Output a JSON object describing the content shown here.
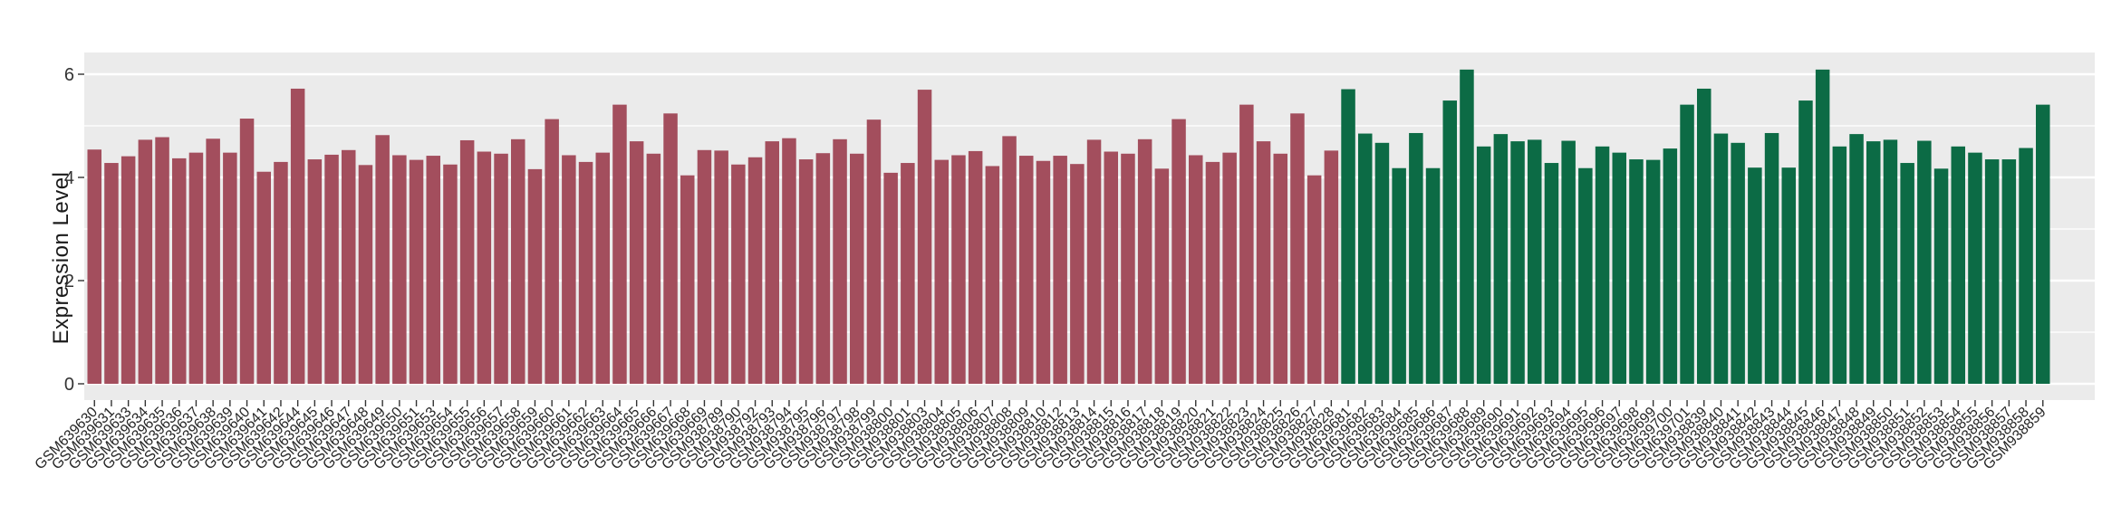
{
  "style": {
    "background": "#FFFFFF",
    "panel_bg": "#EBEBEB",
    "grid_color": "#FFFFFF",
    "axis_tick_color": "#333333",
    "axis_text_color": "#262626",
    "group1_color": "#A34E5D",
    "group2_color": "#0C6B45"
  },
  "chart_data": {
    "type": "bar",
    "title": "",
    "xlabel": "",
    "ylabel": "Expression Level",
    "yticks": [
      0,
      2,
      4,
      6
    ],
    "ylim": [
      0,
      6.42
    ],
    "grid": true,
    "legend_position": "none",
    "groups": [
      {
        "name": "group-1-dark-red",
        "color": "#A34E5D",
        "start": 0,
        "end": 73
      },
      {
        "name": "group-2-dark-green",
        "color": "#0C6B45",
        "start": 74,
        "end": 115
      }
    ],
    "categories": [
      "GSM639630",
      "GSM639631",
      "GSM639633",
      "GSM639634",
      "GSM639635",
      "GSM639636",
      "GSM639637",
      "GSM639638",
      "GSM639639",
      "GSM639640",
      "GSM639641",
      "GSM639642",
      "GSM639644",
      "GSM639645",
      "GSM639646",
      "GSM639647",
      "GSM639648",
      "GSM639649",
      "GSM639650",
      "GSM639651",
      "GSM639653",
      "GSM639654",
      "GSM639655",
      "GSM639656",
      "GSM639657",
      "GSM639658",
      "GSM639659",
      "GSM639660",
      "GSM639661",
      "GSM639662",
      "GSM639663",
      "GSM639664",
      "GSM639665",
      "GSM639666",
      "GSM639667",
      "GSM639668",
      "GSM639669",
      "GSM938789",
      "GSM938790",
      "GSM938792",
      "GSM938793",
      "GSM938794",
      "GSM938795",
      "GSM938796",
      "GSM938797",
      "GSM938798",
      "GSM938799",
      "GSM938800",
      "GSM938801",
      "GSM938803",
      "GSM938804",
      "GSM938805",
      "GSM938806",
      "GSM938807",
      "GSM938808",
      "GSM938809",
      "GSM938810",
      "GSM938812",
      "GSM938813",
      "GSM938814",
      "GSM938815",
      "GSM938816",
      "GSM938817",
      "GSM938818",
      "GSM938819",
      "GSM938820",
      "GSM938821",
      "GSM938822",
      "GSM938823",
      "GSM938824",
      "GSM938825",
      "GSM938826",
      "GSM938827",
      "GSM938828",
      "GSM639681",
      "GSM639682",
      "GSM639683",
      "GSM639684",
      "GSM639685",
      "GSM639686",
      "GSM639687",
      "GSM639688",
      "GSM639689",
      "GSM639690",
      "GSM639691",
      "GSM639692",
      "GSM639693",
      "GSM639694",
      "GSM639695",
      "GSM639696",
      "GSM639697",
      "GSM639698",
      "GSM639699",
      "GSM639700",
      "GSM639701",
      "GSM938839",
      "GSM938840",
      "GSM938841",
      "GSM938842",
      "GSM938843",
      "GSM938844",
      "GSM938845",
      "GSM938846",
      "GSM938847",
      "GSM938848",
      "GSM938849",
      "GSM938850",
      "GSM938851",
      "GSM938852",
      "GSM938853",
      "GSM938854",
      "GSM938855",
      "GSM938856",
      "GSM938857",
      "GSM938858",
      "GSM938859"
    ],
    "values": [
      4.54,
      4.28,
      4.41,
      4.73,
      4.78,
      4.37,
      4.48,
      4.75,
      4.48,
      5.14,
      4.11,
      4.3,
      5.72,
      4.35,
      4.44,
      4.53,
      4.24,
      4.82,
      4.43,
      4.34,
      4.42,
      4.25,
      4.72,
      4.5,
      4.46,
      4.74,
      4.16,
      5.13,
      4.43,
      4.3,
      4.48,
      5.41,
      4.7,
      4.46,
      5.24,
      4.04,
      4.53,
      4.52,
      4.25,
      4.39,
      4.7,
      4.76,
      4.35,
      4.47,
      4.74,
      4.46,
      5.12,
      4.09,
      4.28,
      5.7,
      4.34,
      4.43,
      4.51,
      4.22,
      4.8,
      4.42,
      4.32,
      4.42,
      4.26,
      4.73,
      4.5,
      4.46,
      4.74,
      4.17,
      5.13,
      4.43,
      4.3,
      4.48,
      5.41,
      4.7,
      4.46,
      5.24,
      4.04,
      4.52,
      5.71,
      4.85,
      4.67,
      4.18,
      4.86,
      4.18,
      5.49,
      6.09,
      4.6,
      4.84,
      4.7,
      4.73,
      4.28,
      4.71,
      4.18,
      4.6,
      4.48,
      4.35,
      4.34,
      4.56,
      5.41,
      5.72,
      4.85,
      4.67,
      4.19,
      4.86,
      4.19,
      5.49,
      6.09,
      4.6,
      4.84,
      4.7,
      4.73,
      4.28,
      4.71,
      4.17,
      4.6,
      4.48,
      4.35,
      4.35,
      4.57,
      5.41
    ]
  }
}
